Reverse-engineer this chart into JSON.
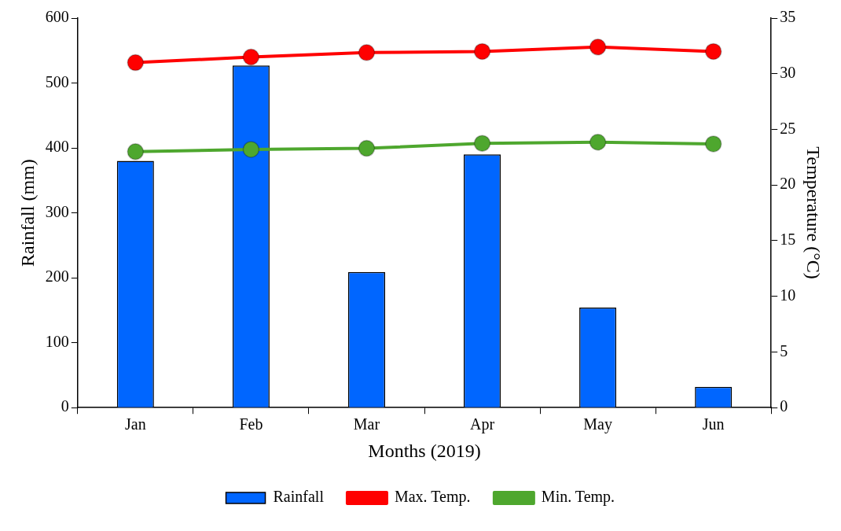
{
  "chart_data": {
    "type": "bar",
    "xlabel": "Months (2019)",
    "ylabel": "Rainfall (mm)",
    "y2label": "Temperature (°C)",
    "categories": [
      "Jan",
      "Feb",
      "Mar",
      "Apr",
      "May",
      "Jun"
    ],
    "series": [
      {
        "name": "Rainfall",
        "color": "#0066ff",
        "values": [
          380,
          527,
          209,
          390,
          154,
          32
        ]
      },
      {
        "name": "Max. Temp.",
        "type": "line",
        "axis": "y2",
        "color": "#ff0000",
        "values": [
          31.0,
          31.5,
          31.9,
          32.0,
          32.4,
          32.0
        ]
      },
      {
        "name": "Min. Temp.",
        "type": "line",
        "axis": "y2",
        "color": "#4ea72e",
        "values": [
          23.0,
          23.2,
          23.3,
          23.75,
          23.85,
          23.7
        ]
      }
    ],
    "ylim": [
      0,
      600
    ],
    "yticks": [
      0,
      100,
      200,
      300,
      400,
      500,
      600
    ],
    "y2lim": [
      0,
      35
    ],
    "y2ticks": [
      0,
      5,
      10,
      15,
      20,
      25,
      30,
      35
    ],
    "grid": false,
    "legend": "bottom",
    "marker": "circle",
    "line_style": "solid"
  }
}
